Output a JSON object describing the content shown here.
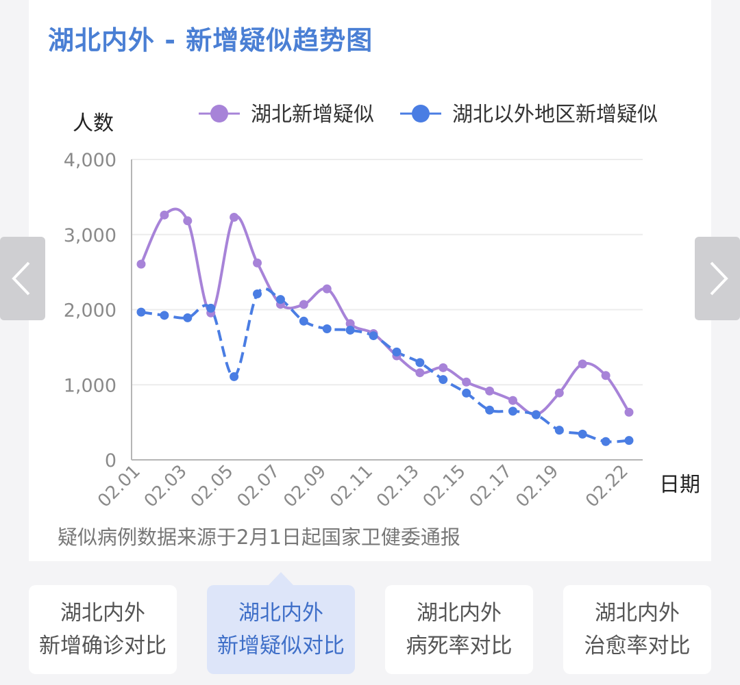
{
  "title": "湖北内外 - 新增疑似趋势图",
  "source_note": "疑似病例数据来源于2月1日起国家卫健委通报",
  "colors": {
    "hubei": "#a783d8",
    "outside": "#4a7de3",
    "title": "#4a7fd4",
    "active_tab_bg": "#dde5f9"
  },
  "nav": {
    "prev_icon": "chevron-left-icon",
    "next_icon": "chevron-right-icon"
  },
  "tabs": [
    {
      "line1": "湖北内外",
      "line2": "新增确诊对比",
      "active": false
    },
    {
      "line1": "湖北内外",
      "line2": "新增疑似对比",
      "active": true
    },
    {
      "line1": "湖北内外",
      "line2": "病死率对比",
      "active": false
    },
    {
      "line1": "湖北内外",
      "line2": "治愈率对比",
      "active": false
    }
  ],
  "chart_data": {
    "type": "line",
    "ylabel": "人数",
    "xlabel": "日期",
    "ylim": [
      0,
      4000
    ],
    "yticks": [
      "0",
      "1,000",
      "2,000",
      "3,000",
      "4,000"
    ],
    "grid": true,
    "legend_position": "top",
    "categories": [
      "02.01",
      "02.02",
      "02.03",
      "02.04",
      "02.05",
      "02.06",
      "02.07",
      "02.08",
      "02.09",
      "02.10",
      "02.11",
      "02.12",
      "02.13",
      "02.14",
      "02.15",
      "02.16",
      "02.17",
      "02.18",
      "02.19",
      "02.20",
      "02.21",
      "02.22"
    ],
    "xtick_labels": [
      "02.01",
      "02.03",
      "02.05",
      "02.07",
      "02.09",
      "02.11",
      "02.13",
      "02.15",
      "02.17",
      "02.19",
      "02.22"
    ],
    "series": [
      {
        "name": "湖北新增疑似",
        "values": [
          2606,
          3260,
          3183,
          1957,
          3230,
          2622,
          2071,
          2069,
          2277,
          1814,
          1681,
          1385,
          1160,
          1227,
          1036,
          917,
          791,
          604,
          891,
          1277,
          1123,
          634
        ]
      },
      {
        "name": "湖北以外地区新增疑似",
        "values": [
          1967,
          1924,
          1892,
          2019,
          1108,
          2210,
          2136,
          1847,
          1745,
          1727,
          1653,
          1436,
          1295,
          1069,
          889,
          663,
          648,
          600,
          395,
          343,
          244,
          258
        ]
      }
    ]
  }
}
